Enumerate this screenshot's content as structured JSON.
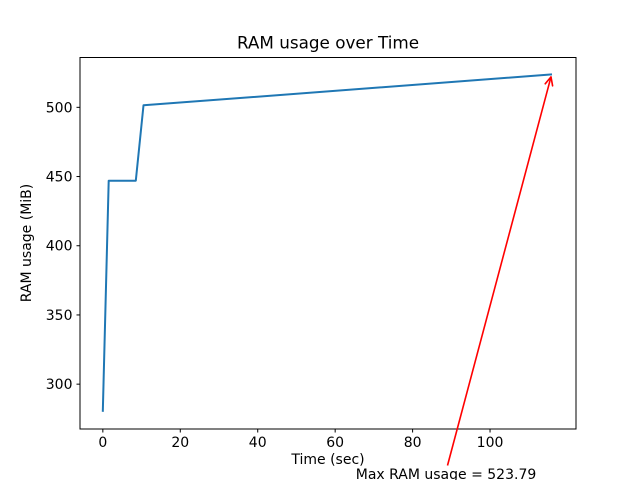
{
  "figure": {
    "background": "#ffffff",
    "axes_facecolor": "#ffffff",
    "spine_color": "#000000",
    "text_color": "#000000"
  },
  "chart_data": {
    "type": "line",
    "title": "RAM usage over Time",
    "xlabel": "Time (sec)",
    "ylabel": "RAM usage (MiB)",
    "xlim": [
      -5.9,
      122.2
    ],
    "ylim": [
      267.6,
      536.0
    ],
    "xticks": [
      0,
      20,
      40,
      60,
      80,
      100
    ],
    "yticks": [
      300,
      350,
      400,
      450,
      500
    ],
    "grid": false,
    "legend": null,
    "series": [
      {
        "name": "RAM usage",
        "color": "#1f77b4",
        "points": [
          [
            0,
            280
          ],
          [
            1.5,
            447
          ],
          [
            8.5,
            447
          ],
          [
            10.5,
            501.5
          ],
          [
            116,
            523.79
          ]
        ]
      }
    ],
    "annotation": {
      "text": "Max RAM usage = 523.79",
      "color": "#ff0000",
      "max_value": 523.79,
      "target": [
        116,
        523.79
      ]
    }
  }
}
